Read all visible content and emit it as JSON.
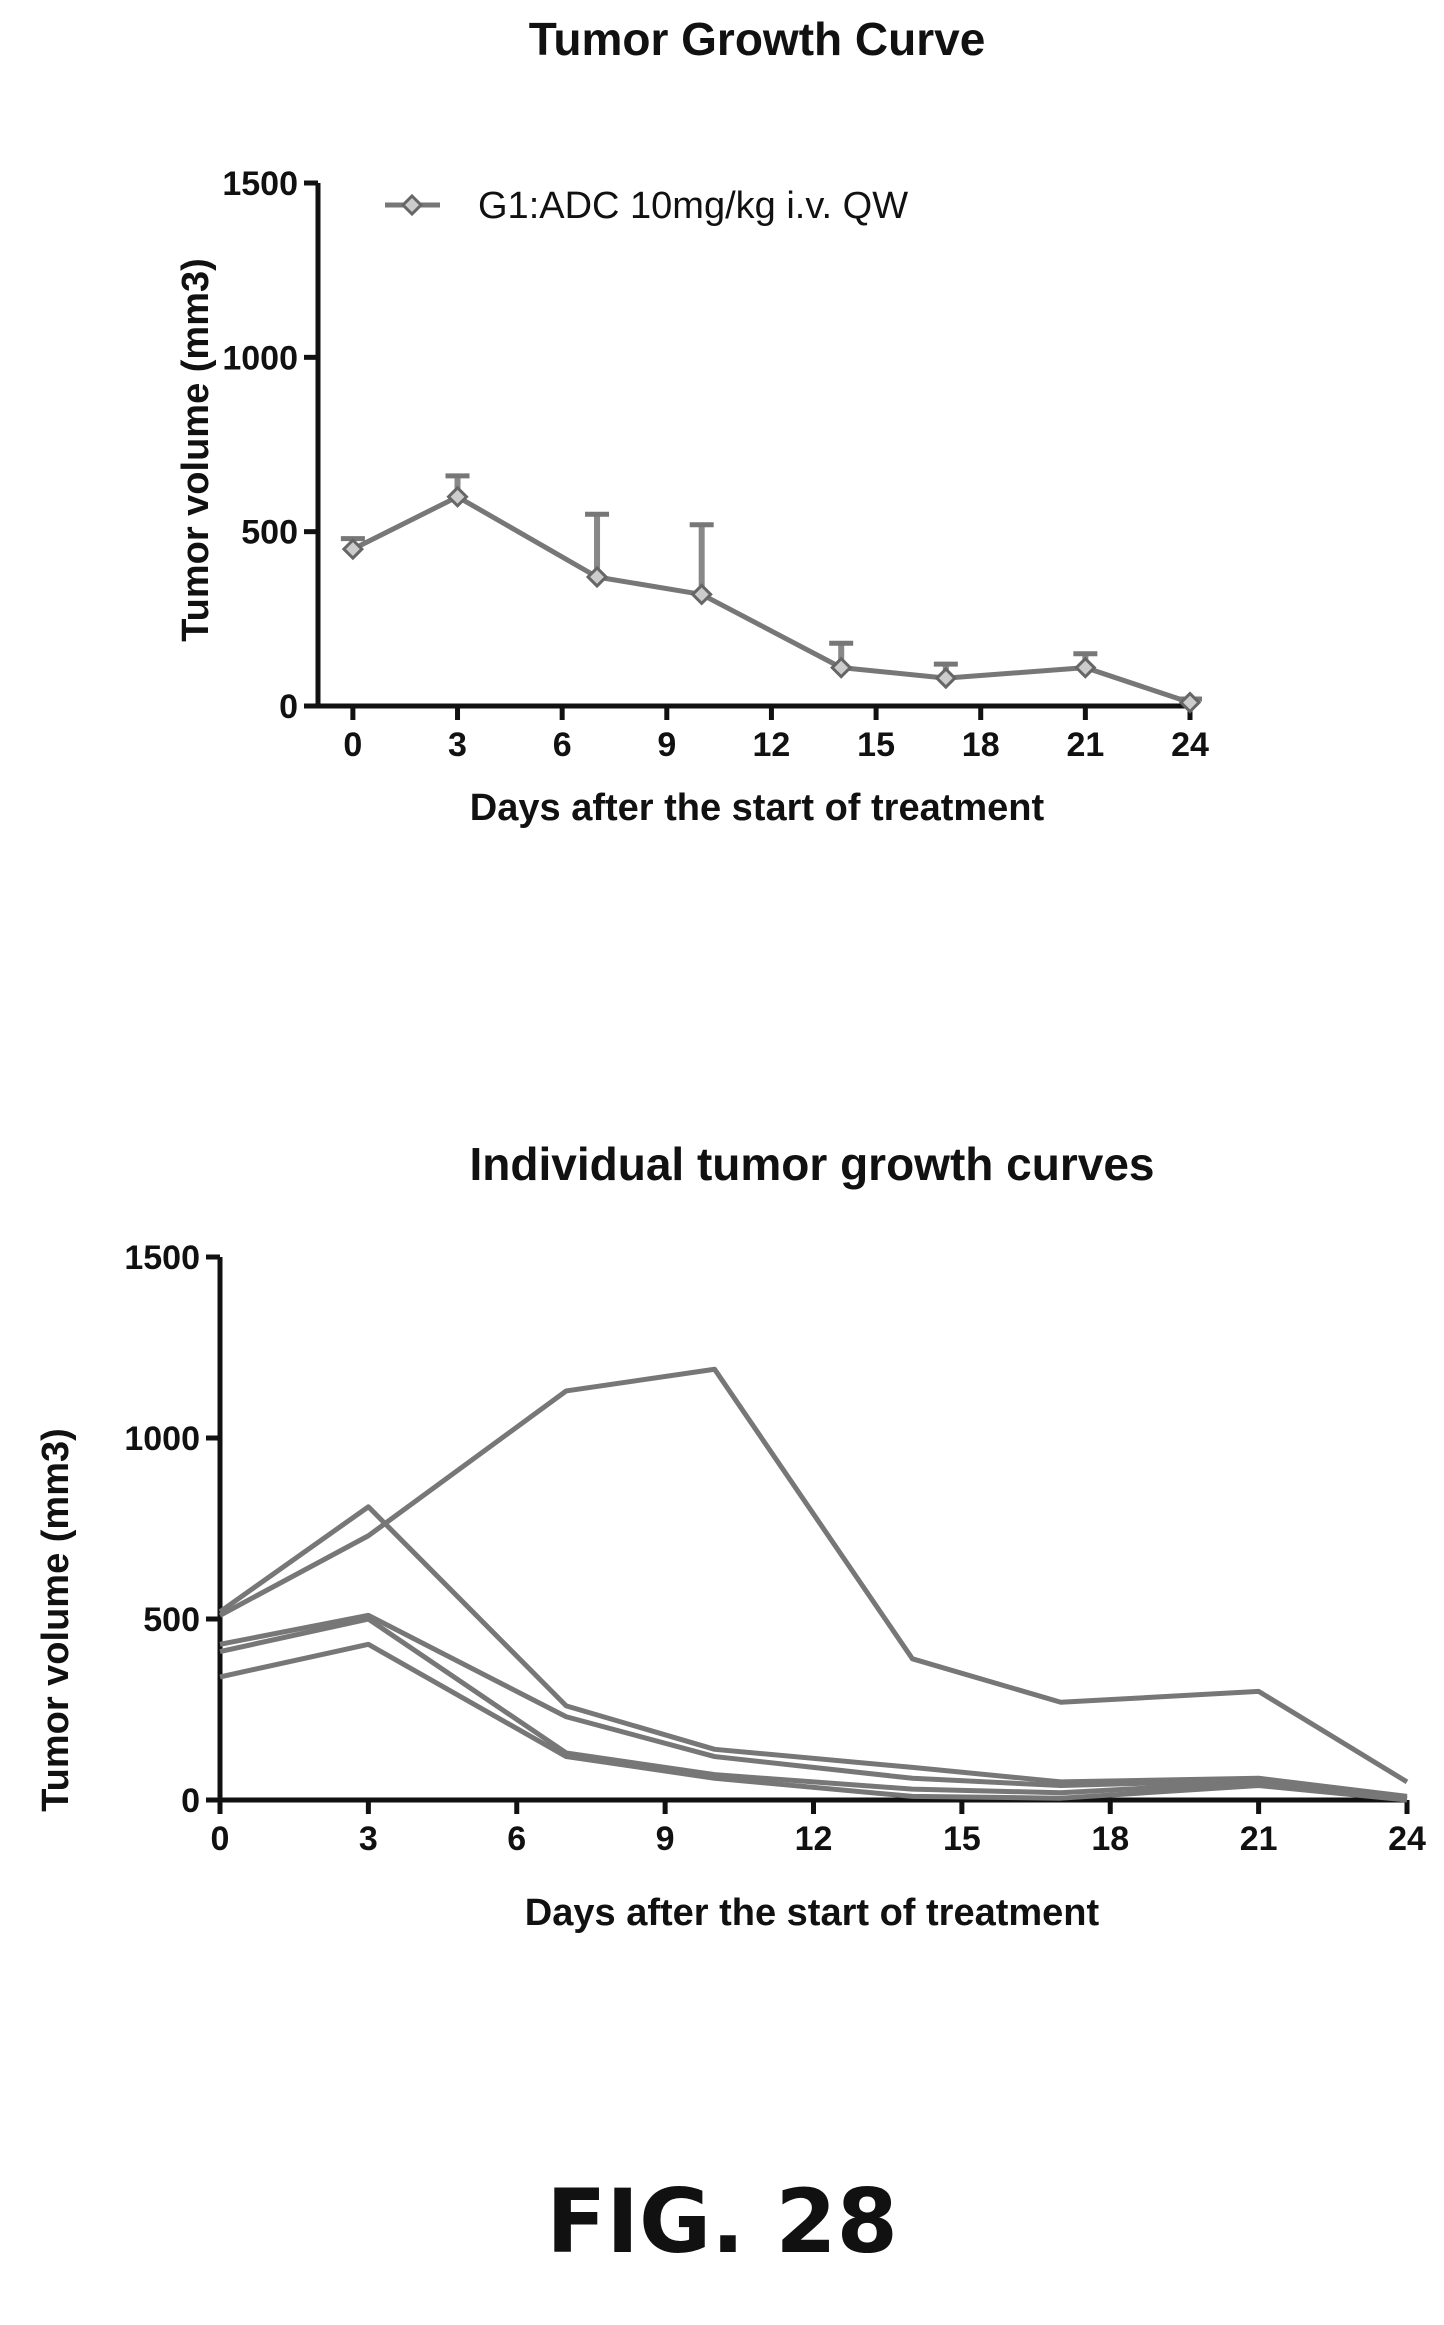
{
  "chart_data": [
    {
      "type": "line",
      "title": "Tumor Growth Curve",
      "xlabel": "Days after the start of treatment",
      "ylabel": "Tumor volume (mm3)",
      "xlim": [
        -1,
        24
      ],
      "ylim": [
        0,
        1500
      ],
      "xticks": [
        0,
        3,
        6,
        9,
        12,
        15,
        18,
        21,
        24
      ],
      "yticks": [
        0,
        500,
        1000,
        1500
      ],
      "legend": "top-left",
      "error_bars": true,
      "series": [
        {
          "name": "G1:ADC 10mg/kg i.v. QW",
          "x": [
            0,
            3,
            7,
            10,
            14,
            17,
            21,
            24
          ],
          "y": [
            450,
            600,
            370,
            320,
            110,
            80,
            110,
            10
          ],
          "err": [
            30,
            60,
            180,
            200,
            70,
            40,
            40,
            10
          ]
        }
      ]
    },
    {
      "type": "line",
      "title": "Individual tumor growth curves",
      "xlabel": "Days after the start of treatment",
      "ylabel": "Tumor volume (mm3)",
      "xlim": [
        0,
        24
      ],
      "ylim": [
        0,
        1500
      ],
      "xticks": [
        0,
        3,
        6,
        9,
        12,
        15,
        18,
        21,
        24
      ],
      "yticks": [
        0,
        500,
        1000,
        1500
      ],
      "series": [
        {
          "x": [
            0,
            3,
            7,
            10,
            14,
            17,
            21,
            24
          ],
          "y": [
            510,
            730,
            1130,
            1190,
            390,
            270,
            300,
            50
          ]
        },
        {
          "x": [
            0,
            3,
            7,
            10,
            14,
            17,
            21,
            24
          ],
          "y": [
            520,
            810,
            260,
            140,
            90,
            50,
            60,
            10
          ]
        },
        {
          "x": [
            0,
            3,
            7,
            10,
            14,
            17,
            21,
            24
          ],
          "y": [
            430,
            510,
            230,
            120,
            60,
            40,
            55,
            5
          ]
        },
        {
          "x": [
            0,
            3,
            7,
            10,
            14,
            17,
            21,
            24
          ],
          "y": [
            410,
            500,
            130,
            70,
            30,
            20,
            50,
            5
          ]
        },
        {
          "x": [
            0,
            3,
            7,
            10,
            14,
            17,
            21,
            24
          ],
          "y": [
            340,
            430,
            120,
            60,
            10,
            5,
            40,
            0
          ]
        }
      ]
    }
  ],
  "figure_label": "FIG. 28"
}
